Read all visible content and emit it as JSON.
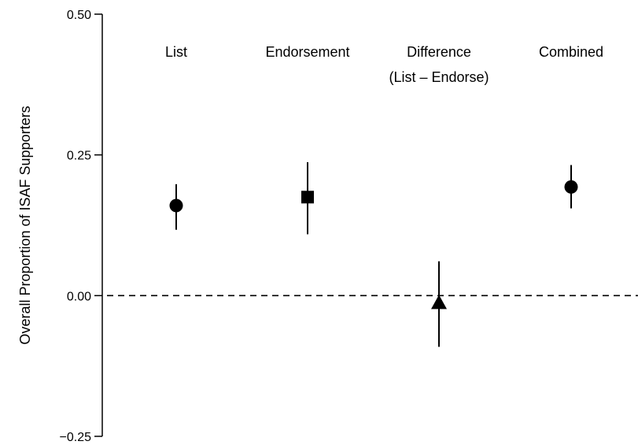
{
  "chart_data": {
    "type": "scatter",
    "title": "",
    "xlabel": "",
    "ylabel": "Overall Proportion of ISAF Supporters",
    "ylim": [
      -0.25,
      0.5
    ],
    "yticks": [
      -0.25,
      0.0,
      0.25,
      0.5
    ],
    "ytick_labels": [
      "−0.25",
      "0.00",
      "0.25",
      "0.50"
    ],
    "reference_line": {
      "y": 0.0,
      "style": "dashed"
    },
    "grid": false,
    "points": [
      {
        "label": "List",
        "label_line2": "",
        "marker": "circle",
        "estimate": 0.16,
        "lower": 0.117,
        "upper": 0.198
      },
      {
        "label": "Endorsement",
        "label_line2": "",
        "marker": "square",
        "estimate": 0.175,
        "lower": 0.109,
        "upper": 0.237
      },
      {
        "label": "Difference",
        "label_line2": "(List – Endorse)",
        "marker": "triangle",
        "estimate": -0.014,
        "lower": -0.091,
        "upper": 0.061
      },
      {
        "label": "Combined",
        "label_line2": "",
        "marker": "circle",
        "estimate": 0.193,
        "lower": 0.155,
        "upper": 0.232
      }
    ]
  }
}
